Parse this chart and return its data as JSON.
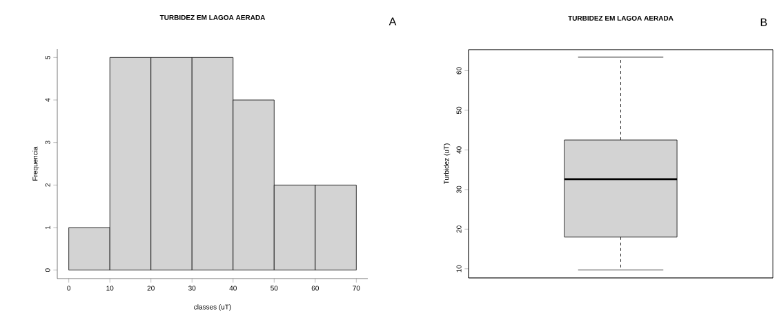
{
  "chart_data": [
    {
      "type": "histogram",
      "title": "TURBIDEZ EM LAGOA AERADA",
      "xlabel": "classes (uT)",
      "ylabel": "Frequencia",
      "bins": [
        0,
        10,
        20,
        30,
        40,
        50,
        60,
        70
      ],
      "values": [
        1,
        5,
        5,
        5,
        4,
        2,
        2
      ],
      "color": "#d3d3d3",
      "xlim": [
        -2.8,
        72.8
      ],
      "xticks": [
        0,
        10,
        20,
        30,
        40,
        50,
        60,
        70
      ],
      "ylim": [
        -0.2,
        5.2
      ],
      "yticks": [
        0,
        1,
        2,
        3,
        4,
        5
      ],
      "annotations": [
        "A"
      ]
    },
    {
      "type": "box",
      "title": "TURBIDEZ EM LAGOA AERADA",
      "ylabel": "Turbidez (uT)",
      "categories": [
        null
      ],
      "boxes": [
        {
          "low": 9.7,
          "q1": 18.0,
          "median": 32.6,
          "q3": 42.5,
          "high": 63.4
        }
      ],
      "color": "#d3d3d3",
      "ylim": [
        7.7,
        65.3
      ],
      "yticks": [
        10,
        20,
        30,
        40,
        50,
        60
      ],
      "annotations": [
        "B"
      ]
    }
  ]
}
